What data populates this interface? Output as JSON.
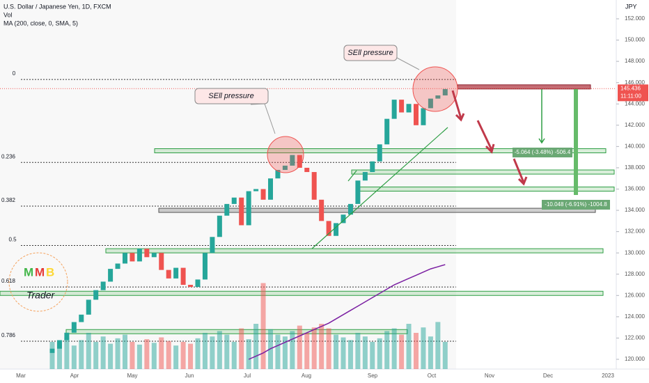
{
  "chart_data": {
    "type": "candlestick",
    "header": [
      "U.S. Dollar / Japanese Yen, 1D, FXCM",
      "Vol",
      "MA (200, close, 0, SMA, 5)"
    ],
    "axis_unit": "JPY",
    "categories": [
      "Mar",
      "Apr",
      "May",
      "Jun",
      "Jul",
      "Aug",
      "Sep",
      "Oct",
      "Nov",
      "Dec",
      "2023"
    ],
    "ylim": [
      120,
      152
    ],
    "yticks": [
      {
        "value": 120,
        "label": "120.000"
      },
      {
        "value": 122,
        "label": "122.000"
      },
      {
        "value": 124,
        "label": "124.000"
      },
      {
        "value": 126,
        "label": "126.000"
      },
      {
        "value": 128,
        "label": "128.000"
      },
      {
        "value": 130,
        "label": "130.000"
      },
      {
        "value": 132,
        "label": "132.000"
      },
      {
        "value": 134,
        "label": "134.000"
      },
      {
        "value": 136,
        "label": "136.000"
      },
      {
        "value": 138,
        "label": "138.000"
      },
      {
        "value": 140,
        "label": "140.000"
      },
      {
        "value": 142,
        "label": "142.000"
      },
      {
        "value": 144,
        "label": "144.000"
      },
      {
        "value": 146,
        "label": "146.000"
      },
      {
        "value": 148,
        "label": "148.000"
      },
      {
        "value": 150,
        "label": "150.000"
      },
      {
        "value": 152,
        "label": "152.000"
      }
    ],
    "open": [
      120.6,
      121.0,
      121.8,
      122.5,
      123.5,
      124.2,
      125.6,
      126.5,
      127.3,
      128.5,
      129.0,
      130.0,
      129.2,
      130.4,
      129.6,
      130.0,
      128.4,
      127.6,
      128.6,
      127.0,
      126.8,
      127.5,
      130.0,
      131.5,
      133.5,
      134.6,
      135.2,
      132.6,
      135.8,
      136.0,
      135.0,
      137.0,
      137.8,
      138.2,
      139.2,
      138.0,
      137.6,
      135.0,
      133.0,
      131.6,
      132.8,
      133.6,
      134.6,
      136.8,
      137.6,
      138.6,
      140.2,
      142.6,
      144.4,
      143.2,
      144.0,
      142.0,
      143.6,
      144.5,
      144.8
    ],
    "close": [
      121.0,
      121.8,
      122.5,
      123.5,
      124.2,
      125.6,
      126.5,
      127.3,
      128.5,
      129.0,
      130.0,
      129.2,
      130.4,
      129.6,
      130.0,
      128.4,
      127.6,
      128.6,
      127.0,
      126.8,
      127.5,
      130.0,
      131.5,
      133.5,
      134.6,
      135.2,
      132.6,
      135.8,
      136.0,
      135.0,
      137.0,
      137.8,
      138.2,
      139.2,
      138.0,
      137.6,
      135.0,
      133.0,
      131.6,
      132.8,
      133.6,
      134.6,
      136.8,
      137.6,
      138.6,
      140.2,
      142.6,
      144.4,
      143.2,
      144.0,
      142.0,
      143.6,
      144.5,
      144.8,
      145.4
    ],
    "volume": [
      30,
      28,
      35,
      26,
      32,
      40,
      30,
      36,
      28,
      34,
      38,
      30,
      27,
      33,
      29,
      35,
      31,
      26,
      30,
      28,
      34,
      40,
      36,
      42,
      38,
      30,
      45,
      33,
      50,
      95,
      44,
      38,
      36,
      42,
      48,
      40,
      46,
      50,
      45,
      38,
      35,
      32,
      40,
      36,
      30,
      34,
      42,
      45,
      38,
      50,
      40,
      46,
      36,
      52,
      30
    ],
    "ma": [
      null,
      null,
      null,
      null,
      null,
      null,
      null,
      null,
      null,
      null,
      null,
      null,
      null,
      null,
      null,
      null,
      null,
      null,
      null,
      null,
      null,
      null,
      null,
      null,
      null,
      null,
      null,
      120.0,
      120.3,
      120.6,
      121.0,
      121.3,
      121.6,
      121.9,
      122.2,
      122.5,
      122.8,
      123.1,
      123.4,
      123.8,
      124.2,
      124.6,
      125.0,
      125.4,
      125.8,
      126.2,
      126.6,
      127.0,
      127.3,
      127.6,
      127.9,
      128.2,
      128.5,
      128.7,
      128.9
    ],
    "up_color": "#26a69a",
    "down_color": "#ef5350",
    "ma_color": "#7b1fa2",
    "last_price": {
      "value": 145.436,
      "label": "145.436",
      "countdown": "11:11:00"
    },
    "fib_levels": [
      {
        "label": "0",
        "value": 146.3
      },
      {
        "label": "0.236",
        "value": 138.5
      },
      {
        "label": "0.382",
        "value": 134.4
      },
      {
        "label": "0.5",
        "value": 130.7
      },
      {
        "label": "0.618",
        "value": 126.8
      },
      {
        "label": "0.786",
        "value": 121.7
      }
    ],
    "zones": [
      {
        "value": 139.6,
        "color": "green"
      },
      {
        "value": 137.6,
        "color": "green"
      },
      {
        "value": 136.0,
        "color": "green"
      },
      {
        "value": 134.0,
        "color": "grey"
      },
      {
        "value": 130.2,
        "color": "green"
      },
      {
        "value": 126.2,
        "color": "green"
      },
      {
        "value": 122.6,
        "color": "green"
      },
      {
        "value": 145.6,
        "color": "red"
      }
    ],
    "annotations": [
      "SEll pressure",
      "SEll pressure"
    ],
    "measures": [
      "-5.064 (-3.48%) -506.4",
      "-10.048 (-6.91%) -1004.8"
    ],
    "logo": {
      "letters": [
        "M",
        "M",
        "B"
      ],
      "sub": "Trader"
    }
  }
}
